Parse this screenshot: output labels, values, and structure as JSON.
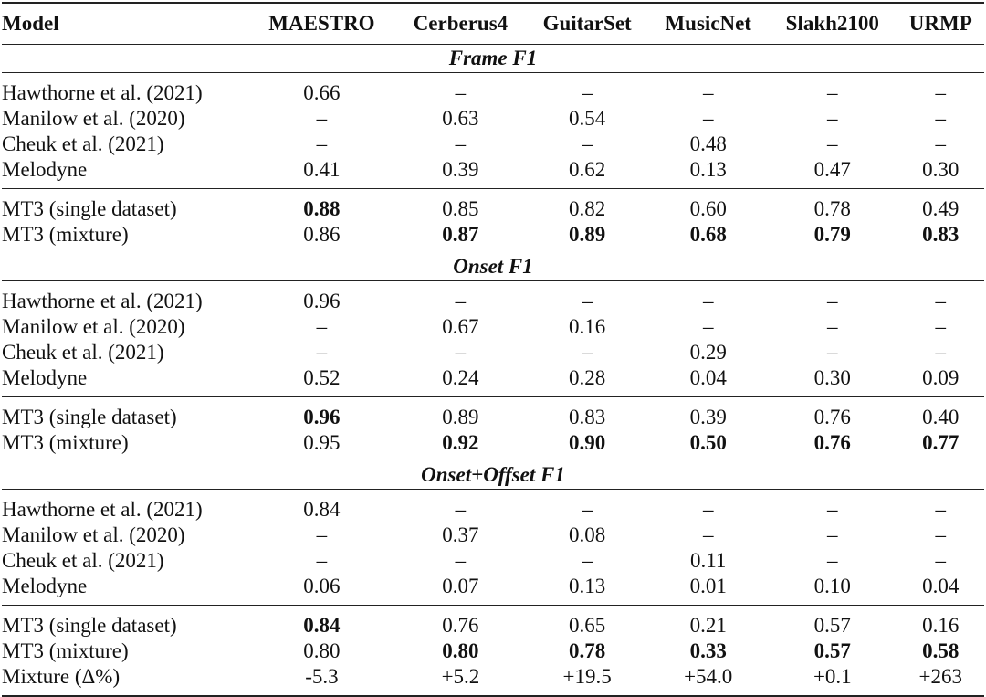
{
  "table": {
    "header": [
      "Model",
      "MAESTRO",
      "Cerberus4",
      "GuitarSet",
      "MusicNet",
      "Slakh2100",
      "URMP"
    ],
    "sections": [
      {
        "title": "Frame F1",
        "groups": [
          [
            [
              "Hawthorne et al. (2021)",
              "0.66",
              "–",
              "–",
              "–",
              "–",
              "–"
            ],
            [
              "Manilow et al. (2020)",
              "–",
              "0.63",
              "0.54",
              "–",
              "–",
              "–"
            ],
            [
              "Cheuk et al. (2021)",
              "–",
              "–",
              "–",
              "0.48",
              "–",
              "–"
            ],
            [
              "Melodyne",
              "0.41",
              "0.39",
              "0.62",
              "0.13",
              "0.47",
              "0.30"
            ]
          ],
          [
            [
              "MT3 (single dataset)",
              {
                "text": "0.88",
                "bold": true
              },
              "0.85",
              "0.82",
              "0.60",
              "0.78",
              "0.49"
            ],
            [
              "MT3 (mixture)",
              "0.86",
              {
                "text": "0.87",
                "bold": true
              },
              {
                "text": "0.89",
                "bold": true
              },
              {
                "text": "0.68",
                "bold": true
              },
              {
                "text": "0.79",
                "bold": true
              },
              {
                "text": "0.83",
                "bold": true
              }
            ]
          ]
        ]
      },
      {
        "title": "Onset F1",
        "groups": [
          [
            [
              "Hawthorne et al. (2021)",
              "0.96",
              "–",
              "–",
              "–",
              "–",
              "–"
            ],
            [
              "Manilow et al. (2020)",
              "–",
              "0.67",
              "0.16",
              "–",
              "–",
              "–"
            ],
            [
              "Cheuk et al. (2021)",
              "–",
              "–",
              "–",
              "0.29",
              "–",
              "–"
            ],
            [
              "Melodyne",
              "0.52",
              "0.24",
              "0.28",
              "0.04",
              "0.30",
              "0.09"
            ]
          ],
          [
            [
              "MT3 (single dataset)",
              {
                "text": "0.96",
                "bold": true
              },
              "0.89",
              "0.83",
              "0.39",
              "0.76",
              "0.40"
            ],
            [
              "MT3 (mixture)",
              "0.95",
              {
                "text": "0.92",
                "bold": true
              },
              {
                "text": "0.90",
                "bold": true
              },
              {
                "text": "0.50",
                "bold": true
              },
              {
                "text": "0.76",
                "bold": true
              },
              {
                "text": "0.77",
                "bold": true
              }
            ]
          ]
        ]
      },
      {
        "title": "Onset+Offset F1",
        "groups": [
          [
            [
              "Hawthorne et al. (2021)",
              "0.84",
              "–",
              "–",
              "–",
              "–",
              "–"
            ],
            [
              "Manilow et al. (2020)",
              "–",
              "0.37",
              "0.08",
              "–",
              "–",
              "–"
            ],
            [
              "Cheuk et al. (2021)",
              "–",
              "–",
              "–",
              "0.11",
              "–",
              "–"
            ],
            [
              "Melodyne",
              "0.06",
              "0.07",
              "0.13",
              "0.01",
              "0.10",
              "0.04"
            ]
          ],
          [
            [
              "MT3 (single dataset)",
              {
                "text": "0.84",
                "bold": true
              },
              "0.76",
              "0.65",
              "0.21",
              "0.57",
              "0.16"
            ],
            [
              "MT3 (mixture)",
              "0.80",
              {
                "text": "0.80",
                "bold": true
              },
              {
                "text": "0.78",
                "bold": true
              },
              {
                "text": "0.33",
                "bold": true
              },
              {
                "text": "0.57",
                "bold": true
              },
              {
                "text": "0.58",
                "bold": true
              }
            ],
            [
              "Mixture (Δ%)",
              "-5.3",
              "+5.2",
              "+19.5",
              "+54.0",
              "+0.1",
              "+263"
            ]
          ]
        ]
      }
    ]
  }
}
